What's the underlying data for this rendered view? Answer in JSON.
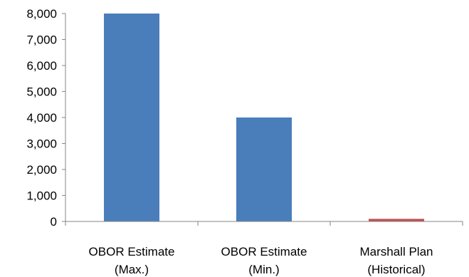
{
  "chart_data": {
    "type": "bar",
    "title": "",
    "xlabel": "",
    "ylabel": "",
    "ylim": [
      0,
      8000
    ],
    "yticks": [
      0,
      1000,
      2000,
      3000,
      4000,
      5000,
      6000,
      7000,
      8000
    ],
    "ytick_labels": [
      "0",
      "1,000",
      "2,000",
      "3,000",
      "4,000",
      "5,000",
      "6,000",
      "7,000",
      "8,000"
    ],
    "grid": false,
    "legend": "none",
    "categories": [
      {
        "line1": "OBOR Estimate",
        "line2": "(Max.)"
      },
      {
        "line1": "OBOR Estimate",
        "line2": "(Min.)"
      },
      {
        "line1": "Marshall Plan",
        "line2": "(Historical)"
      }
    ],
    "values": [
      8000,
      4000,
      100
    ],
    "colors": [
      "#4a7ebb",
      "#4a7ebb",
      "#c0504d"
    ]
  }
}
